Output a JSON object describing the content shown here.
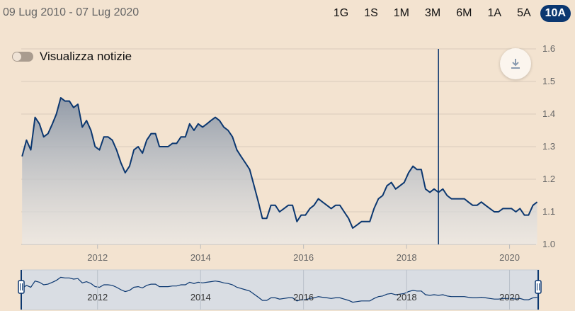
{
  "header": {
    "date_range": "09 Lug 2010 - 07 Lug 2020",
    "periods": [
      "1G",
      "1S",
      "1M",
      "3M",
      "6M",
      "1A",
      "5A",
      "10A"
    ],
    "active_period": "10A"
  },
  "toggle": {
    "label": "Visualizza notizie",
    "on": false
  },
  "download": {
    "icon": "download-icon"
  },
  "colors": {
    "background": "#f3e3d0",
    "line": "#0b3770",
    "accent": "#0b3770",
    "navigator_bg": "#d9dde3"
  },
  "chart_data": {
    "type": "area",
    "title": "",
    "xlabel": "",
    "ylabel": "",
    "xlim": [
      "2010-07-09",
      "2020-07-07"
    ],
    "ylim": [
      1.0,
      1.6
    ],
    "y_ticks": [
      "1.0",
      "1.1",
      "1.2",
      "1.3",
      "1.4",
      "1.5",
      "1.6"
    ],
    "x_ticks": [
      "2012",
      "2014",
      "2016",
      "2018",
      "2020"
    ],
    "grid": true,
    "crosshair_date": "2018-08",
    "x": [
      "2010-07",
      "2010-08",
      "2010-09",
      "2010-10",
      "2010-11",
      "2010-12",
      "2011-01",
      "2011-02",
      "2011-03",
      "2011-04",
      "2011-05",
      "2011-06",
      "2011-07",
      "2011-08",
      "2011-09",
      "2011-10",
      "2011-11",
      "2011-12",
      "2012-01",
      "2012-02",
      "2012-03",
      "2012-04",
      "2012-05",
      "2012-06",
      "2012-07",
      "2012-08",
      "2012-09",
      "2012-10",
      "2012-11",
      "2012-12",
      "2013-01",
      "2013-02",
      "2013-03",
      "2013-04",
      "2013-05",
      "2013-06",
      "2013-07",
      "2013-08",
      "2013-09",
      "2013-10",
      "2013-11",
      "2013-12",
      "2014-01",
      "2014-02",
      "2014-03",
      "2014-04",
      "2014-05",
      "2014-06",
      "2014-07",
      "2014-08",
      "2014-09",
      "2014-10",
      "2014-11",
      "2014-12",
      "2015-01",
      "2015-02",
      "2015-03",
      "2015-04",
      "2015-05",
      "2015-06",
      "2015-07",
      "2015-08",
      "2015-09",
      "2015-10",
      "2015-11",
      "2015-12",
      "2016-01",
      "2016-02",
      "2016-03",
      "2016-04",
      "2016-05",
      "2016-06",
      "2016-07",
      "2016-08",
      "2016-09",
      "2016-10",
      "2016-11",
      "2016-12",
      "2017-01",
      "2017-02",
      "2017-03",
      "2017-04",
      "2017-05",
      "2017-06",
      "2017-07",
      "2017-08",
      "2017-09",
      "2017-10",
      "2017-11",
      "2017-12",
      "2018-01",
      "2018-02",
      "2018-03",
      "2018-04",
      "2018-05",
      "2018-06",
      "2018-07",
      "2018-08",
      "2018-09",
      "2018-10",
      "2018-11",
      "2018-12",
      "2019-01",
      "2019-02",
      "2019-03",
      "2019-04",
      "2019-05",
      "2019-06",
      "2019-07",
      "2019-08",
      "2019-09",
      "2019-10",
      "2019-11",
      "2019-12",
      "2020-01",
      "2020-02",
      "2020-03",
      "2020-04",
      "2020-05",
      "2020-06",
      "2020-07"
    ],
    "series": [
      {
        "values": [
          1.27,
          1.32,
          1.29,
          1.39,
          1.37,
          1.33,
          1.34,
          1.37,
          1.4,
          1.45,
          1.44,
          1.44,
          1.42,
          1.43,
          1.36,
          1.38,
          1.35,
          1.3,
          1.29,
          1.33,
          1.33,
          1.32,
          1.29,
          1.25,
          1.22,
          1.24,
          1.29,
          1.3,
          1.28,
          1.32,
          1.34,
          1.34,
          1.3,
          1.3,
          1.3,
          1.31,
          1.31,
          1.33,
          1.33,
          1.37,
          1.35,
          1.37,
          1.36,
          1.37,
          1.38,
          1.39,
          1.38,
          1.36,
          1.35,
          1.33,
          1.29,
          1.27,
          1.25,
          1.23,
          1.18,
          1.13,
          1.08,
          1.08,
          1.12,
          1.12,
          1.1,
          1.11,
          1.12,
          1.12,
          1.07,
          1.09,
          1.09,
          1.11,
          1.12,
          1.14,
          1.13,
          1.12,
          1.11,
          1.12,
          1.12,
          1.1,
          1.08,
          1.05,
          1.06,
          1.07,
          1.07,
          1.07,
          1.11,
          1.14,
          1.15,
          1.18,
          1.19,
          1.17,
          1.18,
          1.19,
          1.22,
          1.24,
          1.23,
          1.23,
          1.17,
          1.16,
          1.17,
          1.16,
          1.17,
          1.15,
          1.14,
          1.14,
          1.14,
          1.14,
          1.13,
          1.12,
          1.12,
          1.13,
          1.12,
          1.11,
          1.1,
          1.1,
          1.11,
          1.11,
          1.11,
          1.1,
          1.11,
          1.09,
          1.09,
          1.12,
          1.13
        ]
      }
    ]
  }
}
